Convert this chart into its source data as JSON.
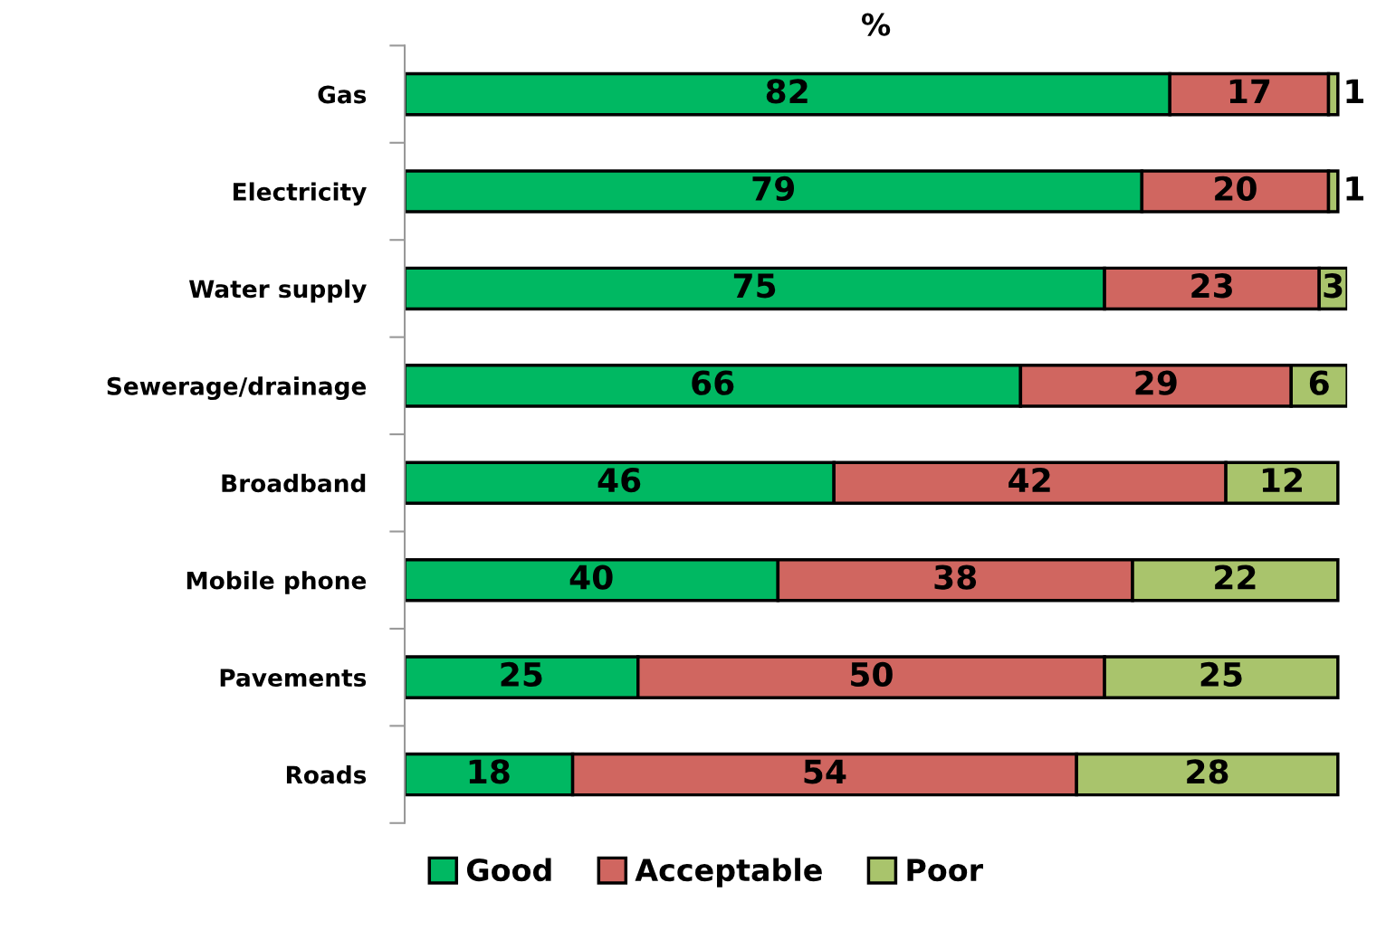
{
  "chart_data": {
    "type": "bar",
    "orientation": "horizontal",
    "stacked": true,
    "title": "%",
    "categories": [
      "Gas",
      "Electricity",
      "Water supply",
      "Sewerage/drainage",
      "Broadband",
      "Mobile phone",
      "Pavements",
      "Roads"
    ],
    "series": [
      {
        "name": "Good",
        "color": "#00b862",
        "values": [
          82,
          79,
          75,
          66,
          46,
          40,
          25,
          18
        ]
      },
      {
        "name": "Acceptable",
        "color": "#d06660",
        "values": [
          17,
          20,
          23,
          29,
          42,
          38,
          50,
          54
        ]
      },
      {
        "name": "Poor",
        "color": "#a9c46c",
        "values": [
          1,
          1,
          3,
          6,
          12,
          22,
          25,
          28
        ]
      }
    ],
    "data_labels": true,
    "legend": "bottom",
    "grid": false,
    "tick_labels": "y"
  }
}
